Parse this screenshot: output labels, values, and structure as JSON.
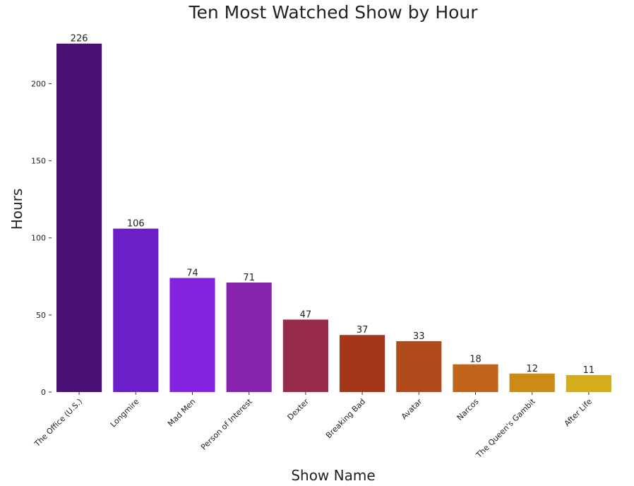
{
  "chart_data": {
    "type": "bar",
    "title": "Ten Most Watched Show by Hour",
    "xlabel": "Show Name",
    "ylabel": "Hours",
    "categories": [
      "The Office (U.S.)",
      "Longmire",
      "Mad Men",
      "Person of Interest",
      "Dexter",
      "Breaking Bad",
      "Avatar",
      "Narcos",
      "The Queen's Gambit",
      "After Life"
    ],
    "values": [
      226,
      106,
      74,
      71,
      47,
      37,
      33,
      18,
      12,
      11
    ],
    "colors": [
      "#4a1073",
      "#6a1fc8",
      "#8423e0",
      "#8722ac",
      "#962a4a",
      "#a4361a",
      "#b04a1a",
      "#c1641a",
      "#cc8a17",
      "#d4ad1c"
    ],
    "ylim": [
      0,
      230
    ],
    "yticks": [
      0,
      50,
      100,
      150,
      200
    ],
    "grid": false,
    "legend": "none"
  }
}
